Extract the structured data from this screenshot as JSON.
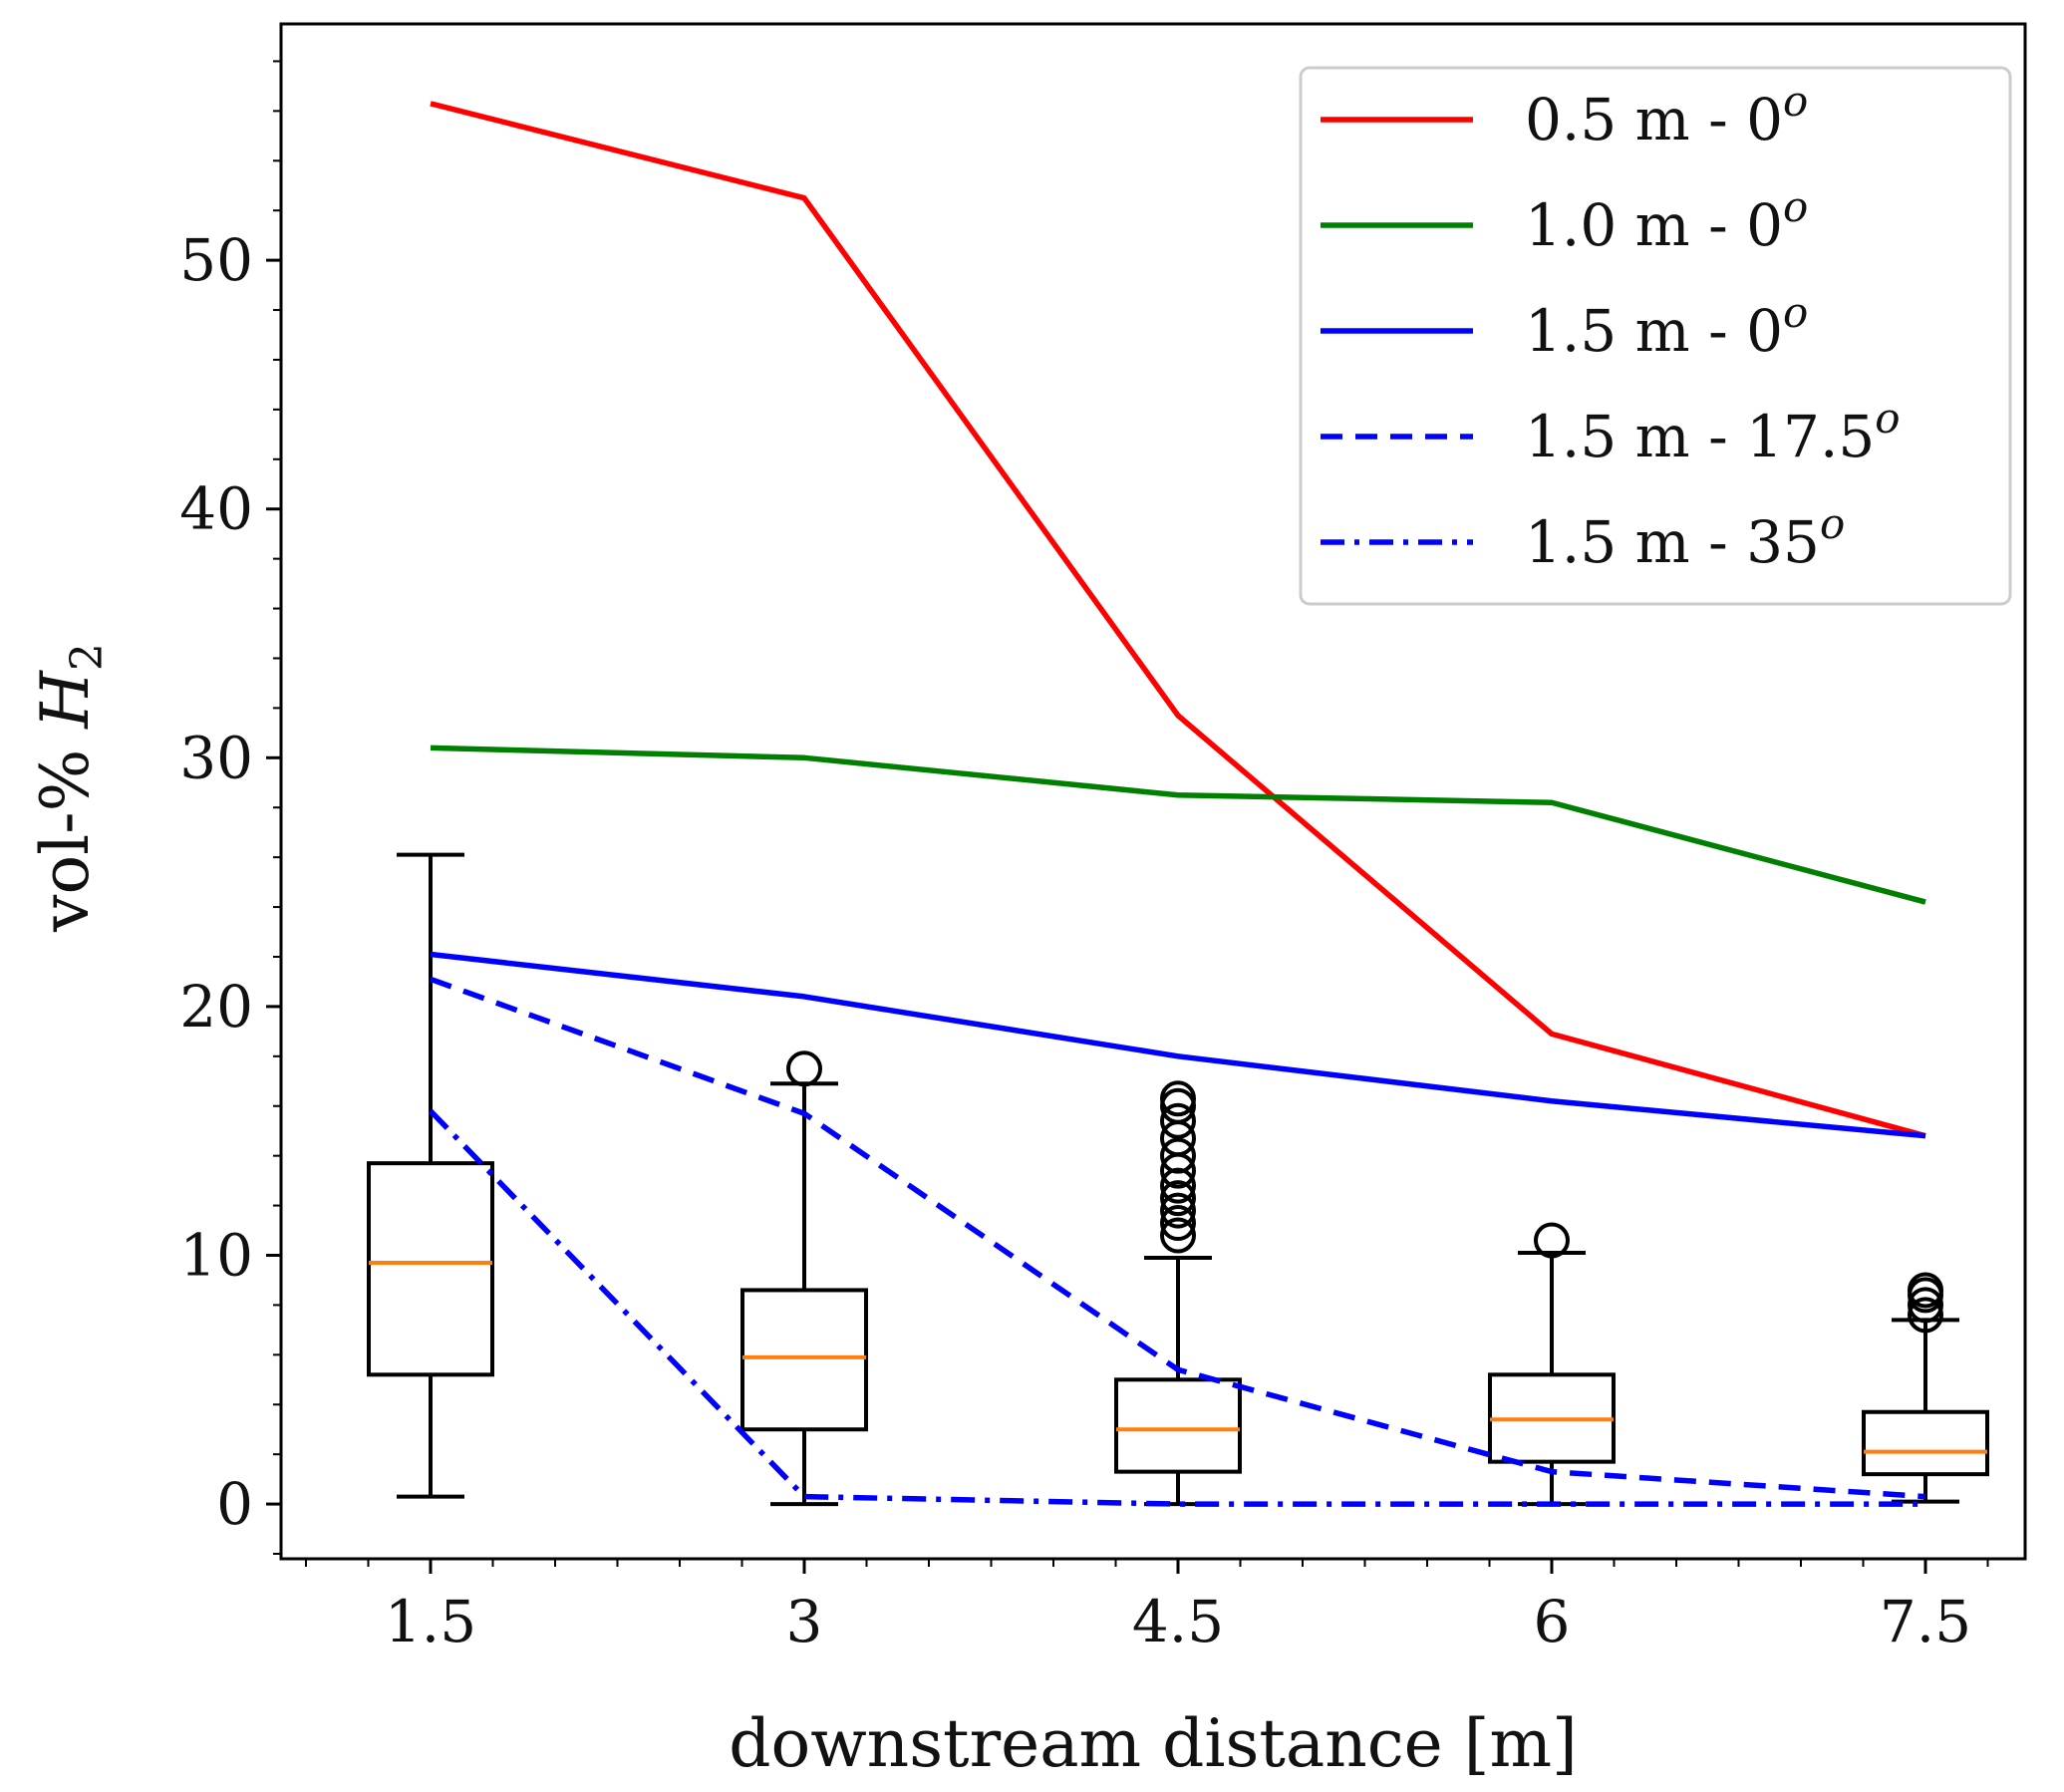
{
  "chart_data": {
    "type": "line",
    "xlabel": "downstream distance [m]",
    "ylabel": "vol-% ",
    "ylabel_symbol": "H",
    "ylabel_subscript": "2",
    "x": [
      1.5,
      3,
      4.5,
      6,
      7.5
    ],
    "x_tick_labels": [
      "1.5",
      "3",
      "4.5",
      "6",
      "7.5"
    ],
    "y_ticks": [
      0,
      10,
      20,
      30,
      40,
      50
    ],
    "y_tick_labels": [
      "0",
      "10",
      "20",
      "30",
      "40",
      "50"
    ],
    "xlim": [
      0.9,
      7.9
    ],
    "ylim": [
      -2.2,
      59.5
    ],
    "grid": false,
    "legend_position": "top-right",
    "series": [
      {
        "name": "0.5 m - 0",
        "superscript": "o",
        "color": "#ff0000",
        "dash": "solid",
        "values": [
          56.3,
          52.5,
          31.7,
          18.9,
          14.8
        ]
      },
      {
        "name": "1.0 m - 0",
        "superscript": "o",
        "color": "#008000",
        "dash": "solid",
        "values": [
          30.4,
          30.0,
          28.5,
          28.2,
          24.2
        ]
      },
      {
        "name": "1.5 m - 0",
        "superscript": "o",
        "color": "#0000ff",
        "dash": "solid",
        "values": [
          22.1,
          20.4,
          18.0,
          16.2,
          14.8
        ]
      },
      {
        "name": "1.5 m - 17.5",
        "superscript": "o",
        "color": "#0000ff",
        "dash": "dashed",
        "values": [
          21.1,
          15.7,
          5.4,
          1.3,
          0.3
        ]
      },
      {
        "name": "1.5 m - 35",
        "superscript": "o",
        "color": "#0000ff",
        "dash": "dashdot",
        "values": [
          15.8,
          0.3,
          0.0,
          0.0,
          0.0
        ]
      }
    ],
    "boxplots": [
      {
        "x": 1.5,
        "whisker_low": 0.3,
        "q1": 5.2,
        "median": 9.7,
        "q3": 13.7,
        "whisker_high": 26.1,
        "outliers": []
      },
      {
        "x": 3,
        "whisker_low": 0.0,
        "q1": 3.0,
        "median": 5.9,
        "q3": 8.6,
        "whisker_high": 16.9,
        "outliers": [
          17.5
        ]
      },
      {
        "x": 4.5,
        "whisker_low": 0.0,
        "q1": 1.3,
        "median": 3.0,
        "q3": 5.0,
        "whisker_high": 9.9,
        "outliers": [
          10.8,
          11.3,
          11.8,
          12.3,
          12.8,
          13.4,
          14.0,
          14.7,
          15.4,
          16.0,
          16.3
        ]
      },
      {
        "x": 6,
        "whisker_low": 0.0,
        "q1": 1.7,
        "median": 3.4,
        "q3": 5.2,
        "whisker_high": 10.1,
        "outliers": [
          10.6
        ]
      },
      {
        "x": 7.5,
        "whisker_low": 0.1,
        "q1": 1.2,
        "median": 2.1,
        "q3": 3.7,
        "whisker_high": 7.4,
        "outliers": [
          7.6,
          8.0,
          8.4,
          8.6
        ]
      }
    ],
    "box_color": "#000000",
    "median_color": "#ff7f0e"
  }
}
